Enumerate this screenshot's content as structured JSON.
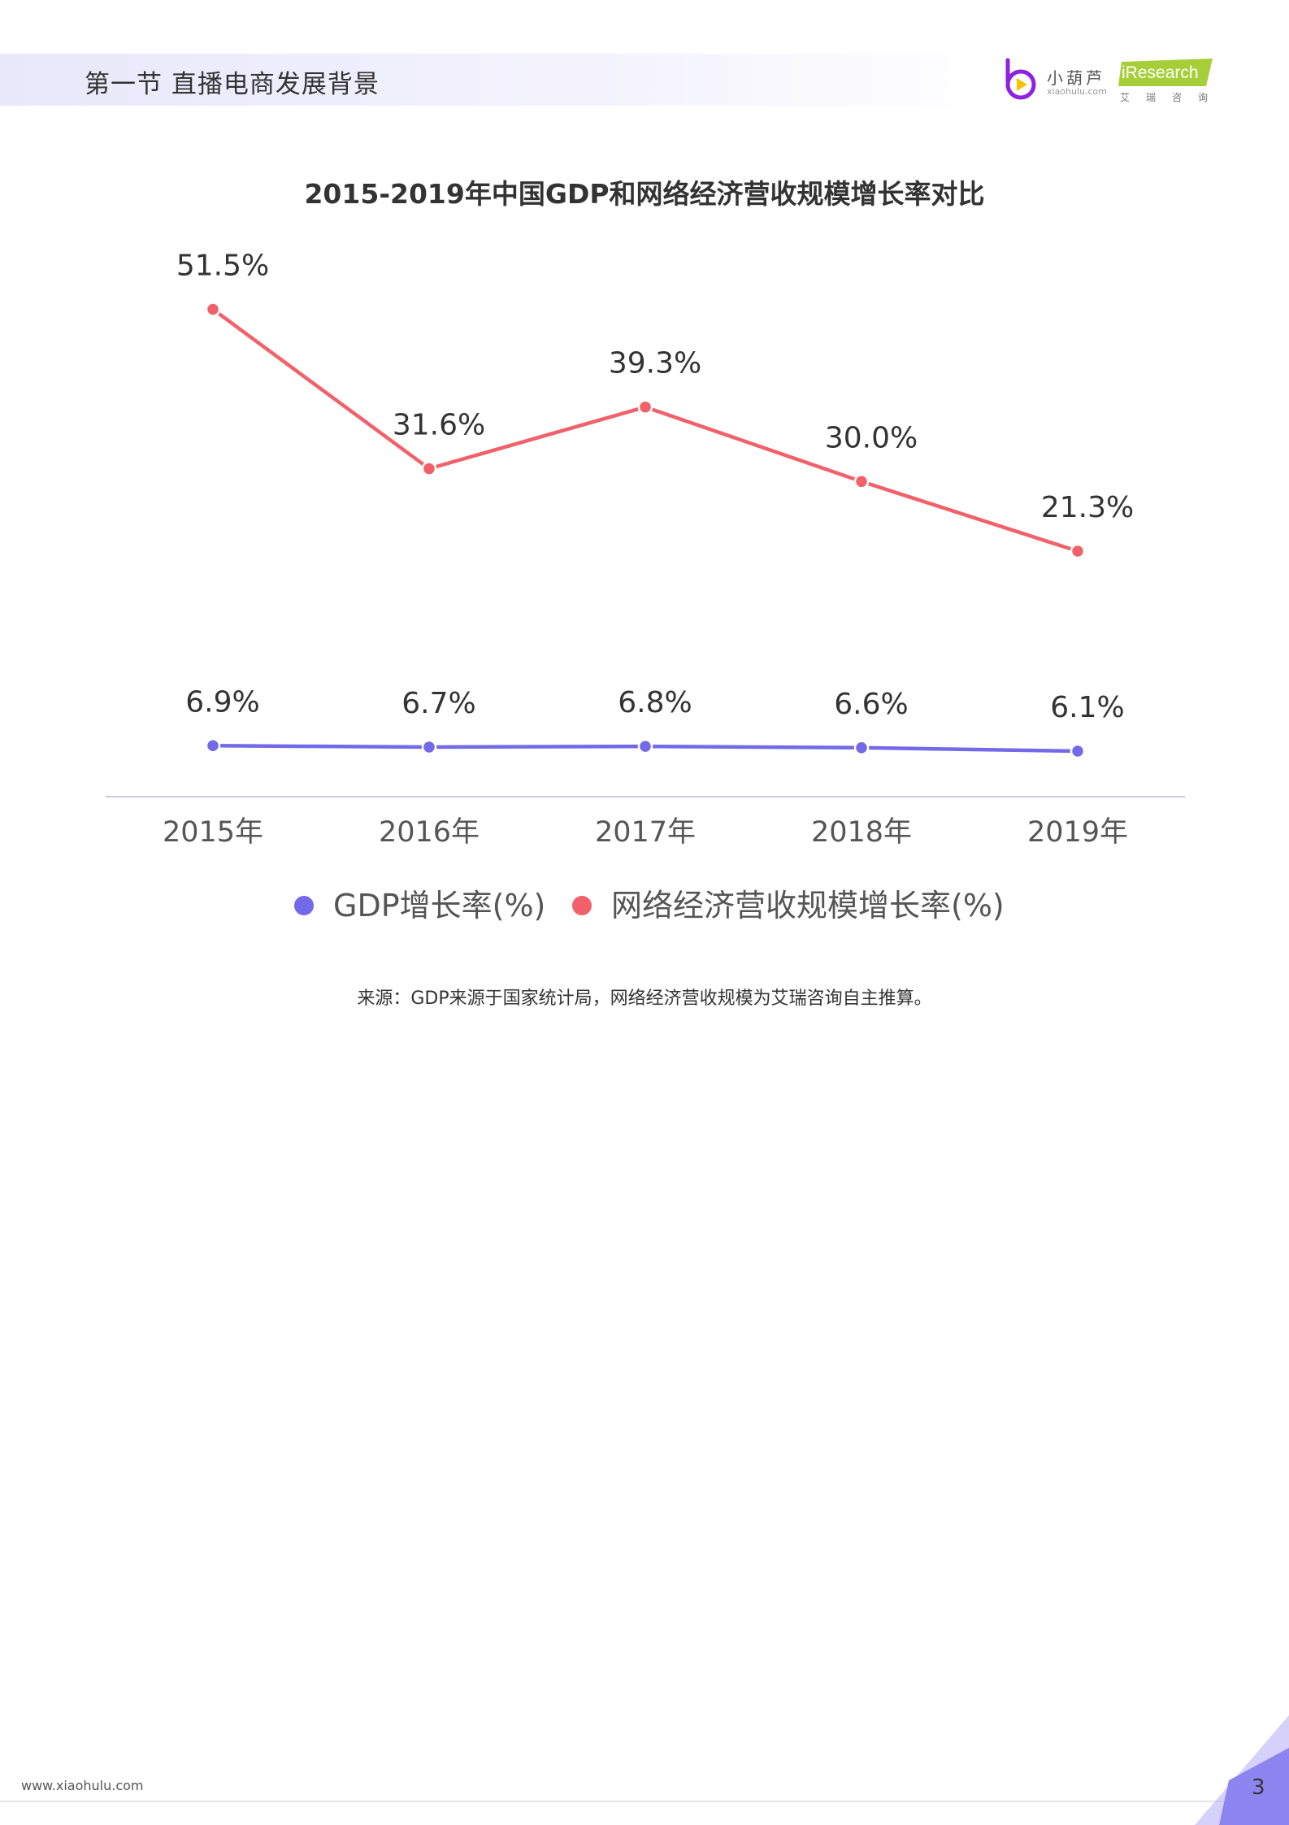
{
  "header": {
    "section_title": "第一节 直播电商发展背景"
  },
  "logos": {
    "xiaohulu_name": "小葫芦",
    "xiaohulu_domain": "xiaohulu.com",
    "iresearch_brand": "iResearch",
    "iresearch_sub": "艾瑞咨询"
  },
  "chart_data": {
    "type": "line",
    "title": "2015-2019年中国GDP和网络经济营收规模增长率对比",
    "categories": [
      "2015年",
      "2016年",
      "2017年",
      "2018年",
      "2019年"
    ],
    "series": [
      {
        "name": "GDP增长率(%)",
        "values": [
          6.9,
          6.7,
          6.8,
          6.6,
          6.1
        ],
        "labels": [
          "6.9%",
          "6.7%",
          "6.8%",
          "6.6%",
          "6.1%"
        ],
        "color": "#7469e8"
      },
      {
        "name": "网络经济营收规模增长率(%)",
        "values": [
          51.5,
          31.6,
          39.3,
          30.0,
          21.3
        ],
        "labels": [
          "51.5%",
          "31.6%",
          "39.3%",
          "30.0%",
          "21.3%"
        ],
        "color": "#f2606a"
      }
    ],
    "grid": false,
    "legend_position": "bottom"
  },
  "source_note": "来源：GDP来源于国家统计局，网络经济营收规模为艾瑞咨询自主推算。",
  "footer": {
    "url": "www.xiaohulu.com",
    "page_number": "3"
  }
}
